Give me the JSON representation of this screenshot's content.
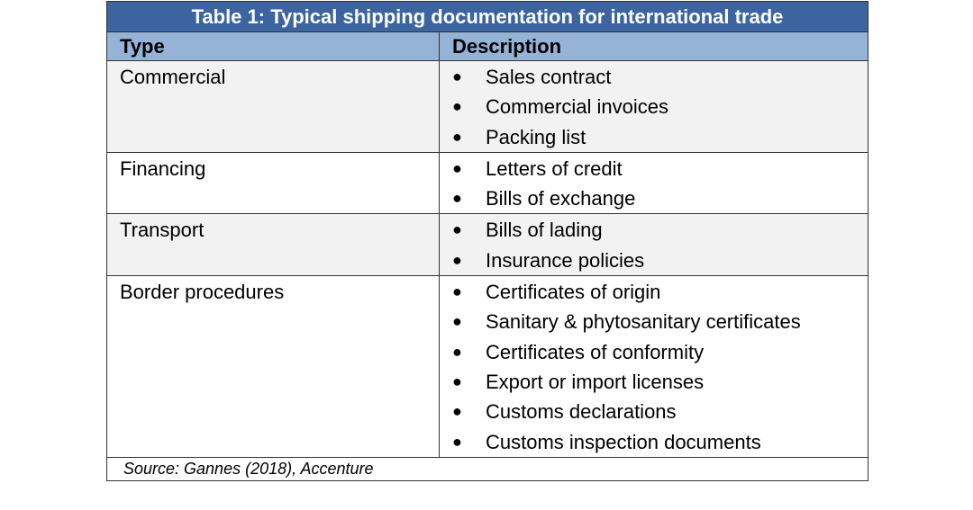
{
  "title": "Table 1: Typical shipping documentation for international trade",
  "headers": {
    "type": "Type",
    "description": "Description"
  },
  "rows": [
    {
      "type": "Commercial",
      "items": [
        "Sales contract",
        "Commercial invoices",
        "Packing list"
      ]
    },
    {
      "type": "Financing",
      "items": [
        "Letters of credit",
        "Bills of exchange"
      ]
    },
    {
      "type": "Transport",
      "items": [
        "Bills of lading",
        "Insurance policies"
      ]
    },
    {
      "type": "Border procedures",
      "items": [
        "Certificates of origin",
        "Sanitary & phytosanitary certificates",
        "Certificates of conformity",
        "Export or import licenses",
        "Customs declarations",
        "Customs inspection documents"
      ]
    }
  ],
  "source": "Source: Gannes (2018), Accenture",
  "colors": {
    "title_bg": "#3b64a0",
    "header_bg": "#95b3d7",
    "alt_row_bg": "#f2f2f2"
  }
}
